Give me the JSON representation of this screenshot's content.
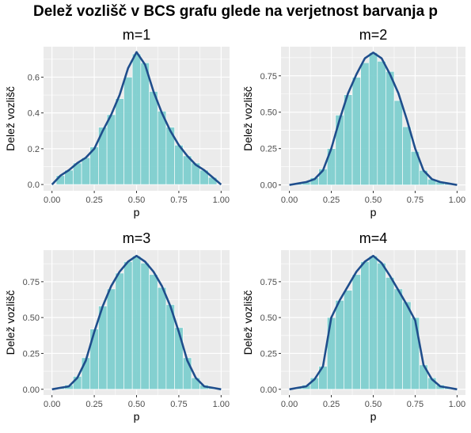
{
  "title": "Delež vozlišč v BCS grafu glede na verjetnost barvanja p",
  "colors": {
    "panel_bg": "#ebebeb",
    "grid": "#ffffff",
    "bar": "#7ecfcf",
    "line": "#1f4e8c"
  },
  "chart_data": [
    {
      "type": "bar",
      "title": "m=1",
      "xlabel": "p",
      "ylabel": "Delež vozlišč",
      "xlim": [
        -0.05,
        1.05
      ],
      "ylim": [
        -0.035,
        0.77
      ],
      "xticks": [
        "0.00",
        "0.25",
        "0.50",
        "0.75",
        "1.00"
      ],
      "yticks": [
        "0.0",
        "0.2",
        "0.4",
        "0.6"
      ],
      "grid": true,
      "x": [
        0,
        0.05,
        0.1,
        0.15,
        0.2,
        0.25,
        0.3,
        0.35,
        0.4,
        0.45,
        0.5,
        0.55,
        0.6,
        0.65,
        0.7,
        0.75,
        0.8,
        0.85,
        0.9,
        0.95,
        1.0
      ],
      "bar_values": [
        0.0,
        0.05,
        0.08,
        0.12,
        0.15,
        0.21,
        0.32,
        0.39,
        0.48,
        0.6,
        0.73,
        0.68,
        0.52,
        0.41,
        0.32,
        0.22,
        0.16,
        0.12,
        0.08,
        0.04,
        0.0
      ],
      "line_values": [
        0.0,
        0.05,
        0.08,
        0.12,
        0.15,
        0.2,
        0.3,
        0.39,
        0.5,
        0.65,
        0.74,
        0.67,
        0.52,
        0.4,
        0.3,
        0.22,
        0.16,
        0.11,
        0.08,
        0.04,
        0.0
      ]
    },
    {
      "type": "bar",
      "title": "m=2",
      "xlabel": "p",
      "ylabel": "Delež vozlišč",
      "xlim": [
        -0.05,
        1.05
      ],
      "ylim": [
        -0.04,
        0.95
      ],
      "xticks": [
        "0.00",
        "0.25",
        "0.50",
        "0.75",
        "1.00"
      ],
      "yticks": [
        "0.00",
        "0.25",
        "0.50",
        "0.75"
      ],
      "grid": true,
      "x": [
        0,
        0.05,
        0.1,
        0.15,
        0.2,
        0.25,
        0.3,
        0.35,
        0.4,
        0.45,
        0.5,
        0.55,
        0.6,
        0.65,
        0.7,
        0.75,
        0.8,
        0.85,
        0.9,
        0.95,
        1.0
      ],
      "bar_values": [
        0.0,
        0.01,
        0.02,
        0.05,
        0.11,
        0.25,
        0.48,
        0.62,
        0.74,
        0.84,
        0.91,
        0.85,
        0.78,
        0.58,
        0.4,
        0.23,
        0.1,
        0.04,
        0.02,
        0.01,
        0.0
      ],
      "line_values": [
        0.0,
        0.01,
        0.02,
        0.04,
        0.1,
        0.25,
        0.45,
        0.63,
        0.76,
        0.87,
        0.91,
        0.87,
        0.76,
        0.63,
        0.45,
        0.25,
        0.1,
        0.04,
        0.02,
        0.01,
        0.0
      ]
    },
    {
      "type": "bar",
      "title": "m=3",
      "xlabel": "p",
      "ylabel": "Delež vozlišč",
      "xlim": [
        -0.05,
        1.05
      ],
      "ylim": [
        -0.04,
        0.97
      ],
      "xticks": [
        "0.00",
        "0.25",
        "0.50",
        "0.75",
        "1.00"
      ],
      "yticks": [
        "0.00",
        "0.25",
        "0.50",
        "0.75"
      ],
      "grid": true,
      "x": [
        0,
        0.05,
        0.1,
        0.15,
        0.2,
        0.25,
        0.3,
        0.35,
        0.4,
        0.45,
        0.5,
        0.55,
        0.6,
        0.65,
        0.7,
        0.75,
        0.8,
        0.85,
        0.9,
        0.95,
        1.0
      ],
      "bar_values": [
        0.0,
        0.01,
        0.03,
        0.09,
        0.22,
        0.42,
        0.58,
        0.7,
        0.81,
        0.89,
        0.93,
        0.88,
        0.8,
        0.71,
        0.59,
        0.43,
        0.22,
        0.08,
        0.03,
        0.01,
        0.0
      ],
      "line_values": [
        0.0,
        0.01,
        0.02,
        0.08,
        0.2,
        0.4,
        0.58,
        0.72,
        0.82,
        0.89,
        0.93,
        0.89,
        0.82,
        0.72,
        0.58,
        0.4,
        0.2,
        0.08,
        0.02,
        0.01,
        0.0
      ]
    },
    {
      "type": "bar",
      "title": "m=4",
      "xlabel": "p",
      "ylabel": "Delež vozlišč",
      "xlim": [
        -0.05,
        1.05
      ],
      "ylim": [
        -0.04,
        0.97
      ],
      "xticks": [
        "0.00",
        "0.25",
        "0.50",
        "0.75",
        "1.00"
      ],
      "yticks": [
        "0.00",
        "0.25",
        "0.50",
        "0.75"
      ],
      "grid": true,
      "x": [
        0,
        0.05,
        0.1,
        0.15,
        0.2,
        0.25,
        0.3,
        0.35,
        0.4,
        0.45,
        0.5,
        0.55,
        0.6,
        0.65,
        0.7,
        0.75,
        0.8,
        0.85,
        0.9,
        0.95,
        1.0
      ],
      "bar_values": [
        0.0,
        0.01,
        0.03,
        0.08,
        0.16,
        0.5,
        0.62,
        0.69,
        0.8,
        0.89,
        0.93,
        0.88,
        0.78,
        0.7,
        0.61,
        0.5,
        0.17,
        0.08,
        0.03,
        0.01,
        0.0
      ],
      "line_values": [
        0.0,
        0.01,
        0.02,
        0.07,
        0.16,
        0.5,
        0.62,
        0.72,
        0.82,
        0.89,
        0.93,
        0.88,
        0.79,
        0.69,
        0.59,
        0.48,
        0.17,
        0.07,
        0.02,
        0.01,
        0.0
      ]
    }
  ]
}
